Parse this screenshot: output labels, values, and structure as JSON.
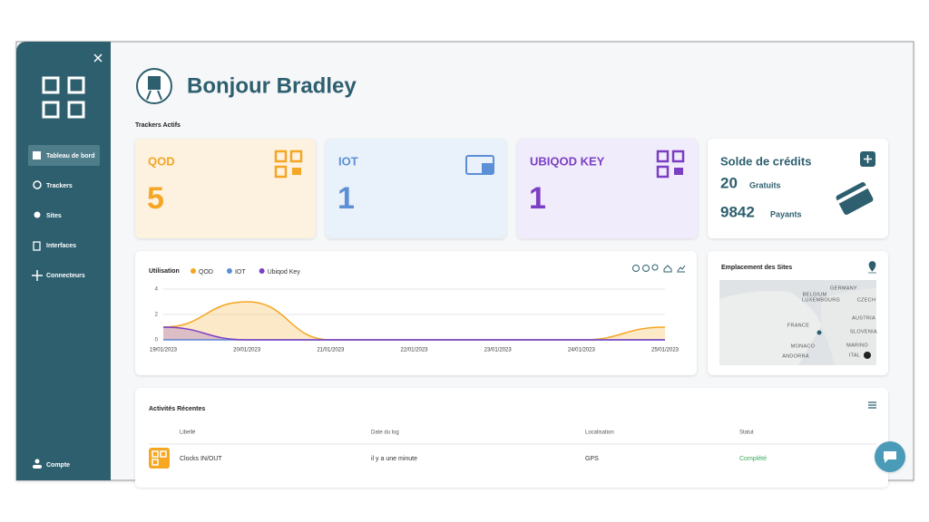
{
  "sidebar": {
    "nav": [
      "Tableau de bord",
      "Trackers",
      "Sites",
      "Interfaces",
      "Connecteurs"
    ],
    "account": "Compte"
  },
  "header": {
    "title": "Bonjour Bradley"
  },
  "trackers": {
    "title": "Trackers Actifs",
    "cards": [
      {
        "name": "QOD",
        "count": 5,
        "color": "#f5a623",
        "background": "#fdf1e0"
      },
      {
        "name": "IOT",
        "count": 1,
        "color": "#5b8fd6",
        "background": "#e9f1fb"
      },
      {
        "name": "UBIQOD KEY",
        "count": 1,
        "color": "#7b3fc4",
        "background": "#f1ecfb"
      }
    ]
  },
  "credits": {
    "title": "Solde de crédits",
    "free": {
      "amount": 20,
      "label": "Gratuits"
    },
    "paid": {
      "amount": 9842,
      "label": "Payants"
    }
  },
  "chart_data": {
    "type": "area",
    "title": "Utilisation",
    "categories": [
      "19/01/2023",
      "20/01/2023",
      "21/01/2023",
      "22/01/2023",
      "23/01/2023",
      "24/01/2023",
      "25/01/2023"
    ],
    "series": [
      {
        "name": "QOD",
        "color": "#f5a623",
        "values": [
          1,
          3,
          0,
          0,
          0,
          0,
          1
        ]
      },
      {
        "name": "IOT",
        "color": "#5b8fd6",
        "values": [
          0,
          0,
          0,
          0,
          0,
          0,
          0
        ]
      },
      {
        "name": "Ubiqod Key",
        "color": "#7b3fc4",
        "values": [
          1,
          0,
          0,
          0,
          0,
          0,
          0
        ]
      }
    ],
    "ylim": [
      0,
      4
    ],
    "yticks": [
      0,
      2,
      4
    ],
    "grid": true,
    "legend": "top"
  },
  "map": {
    "title": "Emplacement des Sites",
    "labels": [
      "GERMANY",
      "BELGIUM",
      "LUXEMBOURG",
      "CZECH",
      "FRANCE",
      "AUSTRIA",
      "SLOVENIA",
      "MONACO",
      "MARINO",
      "ANDORRA",
      "ITAL"
    ]
  },
  "activities": {
    "title": "Activités Récentes",
    "columns": [
      "Libellé",
      "Date du log",
      "Localisation",
      "Statut"
    ],
    "rows": [
      [
        "Clocks IN/OUT",
        "il y a une minute",
        "GPS",
        "Complété"
      ]
    ]
  }
}
